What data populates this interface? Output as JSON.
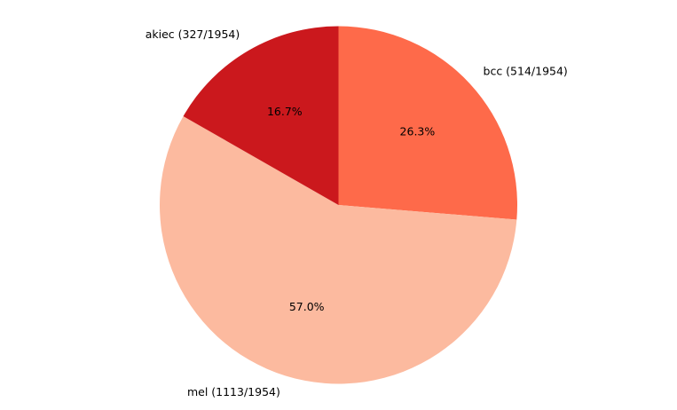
{
  "chart_data": {
    "type": "pie",
    "title": "",
    "start_angle_deg": 90,
    "direction": "clockwise",
    "slices": [
      {
        "label": "bcc (514/1954)",
        "value": 514,
        "percent_label": "26.3%",
        "color": "#fe6a4a"
      },
      {
        "label": "mel (1113/1954)",
        "value": 1113,
        "percent_label": "57.0%",
        "color": "#fcba9f"
      },
      {
        "label": "akiec (327/1954)",
        "value": 327,
        "percent_label": "16.7%",
        "color": "#cb181d"
      }
    ]
  }
}
